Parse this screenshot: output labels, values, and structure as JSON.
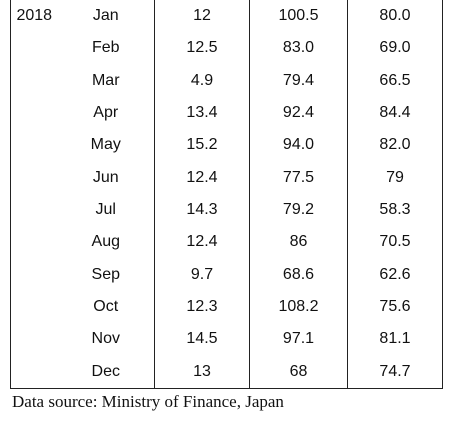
{
  "table": {
    "year": "2018",
    "rows": [
      {
        "month": "Jan",
        "v1": "12",
        "v2": "100.5",
        "v3": "80.0"
      },
      {
        "month": "Feb",
        "v1": "12.5",
        "v2": "83.0",
        "v3": "69.0"
      },
      {
        "month": "Mar",
        "v1": "4.9",
        "v2": "79.4",
        "v3": "66.5"
      },
      {
        "month": "Apr",
        "v1": "13.4",
        "v2": "92.4",
        "v3": "84.4"
      },
      {
        "month": "May",
        "v1": "15.2",
        "v2": "94.0",
        "v3": "82.0"
      },
      {
        "month": "Jun",
        "v1": "12.4",
        "v2": "77.5",
        "v3": "79"
      },
      {
        "month": "Jul",
        "v1": "14.3",
        "v2": "79.2",
        "v3": "58.3"
      },
      {
        "month": "Aug",
        "v1": "12.4",
        "v2": "86",
        "v3": "70.5"
      },
      {
        "month": "Sep",
        "v1": "9.7",
        "v2": "68.6",
        "v3": "62.6"
      },
      {
        "month": "Oct",
        "v1": "12.3",
        "v2": "108.2",
        "v3": "75.6"
      },
      {
        "month": "Nov",
        "v1": "14.5",
        "v2": "97.1",
        "v3": "81.1"
      },
      {
        "month": "Dec",
        "v1": "13",
        "v2": "68",
        "v3": "74.7"
      }
    ]
  },
  "footer": {
    "source": "Data source: Ministry of Finance, Japan"
  }
}
